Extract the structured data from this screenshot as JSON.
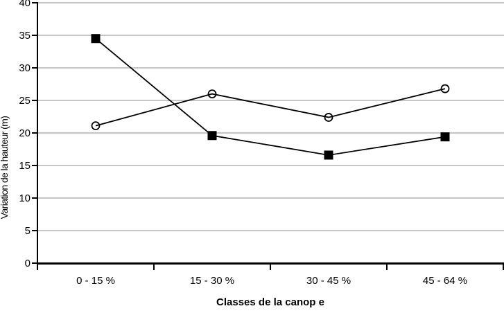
{
  "chart_data": {
    "type": "line",
    "categories": [
      "0 - 15 %",
      "15 - 30 %",
      "30 - 45 %",
      "45 - 64 %"
    ],
    "series": [
      {
        "marker": "filled-square",
        "values": [
          34.5,
          19.6,
          16.6,
          19.4
        ]
      },
      {
        "marker": "open-circle",
        "values": [
          21.1,
          26.0,
          22.4,
          26.8
        ]
      }
    ],
    "xlabel": "Classes de la canop e",
    "ylabel": "Variation de la hauteur (m)",
    "ylim": [
      0,
      40
    ],
    "yticks": [
      0,
      5,
      10,
      15,
      20,
      25,
      30,
      35,
      40
    ],
    "grid": "horizontal",
    "legend": "none",
    "colors": {
      "line": "#000000",
      "axis": "#000000",
      "grid": "#c6c6c6",
      "background": "#ffffff"
    }
  }
}
